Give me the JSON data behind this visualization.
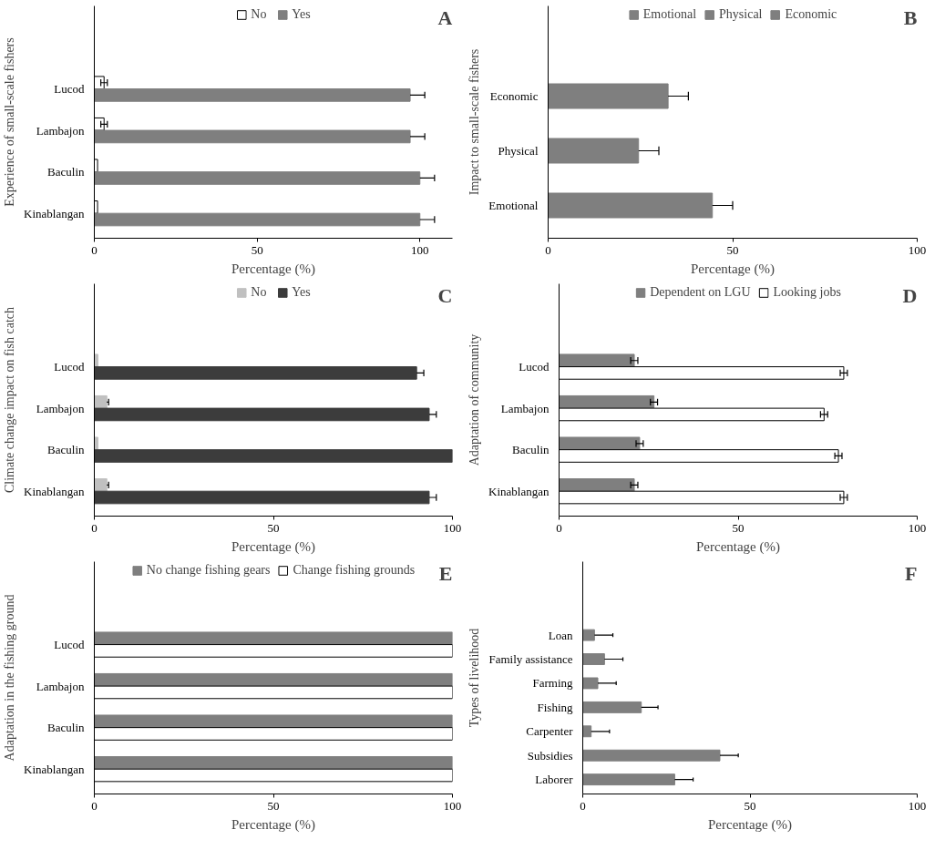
{
  "chart_data": [
    {
      "type": "bar",
      "orientation": "horizontal",
      "title": "A",
      "xlabel": "Percentage (%)",
      "ylabel": "Experience of small-scale fishers",
      "categories": [
        "Lucod",
        "Lambajon",
        "Baculin",
        "Kinablangan"
      ],
      "xlim": [
        0,
        110
      ],
      "xticks": [
        0,
        50,
        100
      ],
      "legend": "top",
      "grid": false,
      "series": [
        {
          "name": "No",
          "color": "#ffffff",
          "values": [
            3,
            3,
            1,
            1
          ],
          "errors": [
            1,
            1,
            null,
            null
          ]
        },
        {
          "name": "Yes",
          "color": "#7f7f7f",
          "values": [
            97,
            97,
            100,
            100
          ],
          "errors": [
            [
              97,
              101.5
            ],
            [
              97,
              101.5
            ],
            [
              100,
              104.5
            ],
            [
              100,
              104.5
            ]
          ]
        }
      ]
    },
    {
      "type": "bar",
      "orientation": "horizontal",
      "title": "B",
      "xlabel": "Percentage (%)",
      "ylabel": "Impact to small-scale fishers",
      "categories": [
        "Economic",
        "Physical",
        "Emotional"
      ],
      "xlim": [
        0,
        100
      ],
      "xticks": [
        0,
        50,
        100
      ],
      "legend": "top",
      "grid": false,
      "series": [
        {
          "name": "Emotional",
          "color": "#7f7f7f",
          "values": [
            null,
            null,
            44.5
          ],
          "errors": [
            null,
            null,
            [
              44.5,
              50
            ]
          ]
        },
        {
          "name": "Physical",
          "color": "#7f7f7f",
          "values": [
            null,
            24.5,
            null
          ],
          "errors": [
            null,
            [
              24.5,
              30
            ],
            null
          ]
        },
        {
          "name": "Economic",
          "color": "#7f7f7f",
          "values": [
            32.5,
            null,
            null
          ],
          "errors": [
            [
              32.5,
              38
            ],
            null,
            null
          ]
        }
      ]
    },
    {
      "type": "bar",
      "orientation": "horizontal",
      "title": "C",
      "xlabel": "Percentage (%)",
      "ylabel": "Climate change impact on fish catch",
      "categories": [
        "Lucod",
        "Lambajon",
        "Baculin",
        "Kinablangan"
      ],
      "xlim": [
        0,
        100
      ],
      "xticks": [
        0,
        50,
        100
      ],
      "legend": "top",
      "grid": false,
      "series": [
        {
          "name": "No",
          "color": "#c0c0c0",
          "values": [
            1,
            3.5,
            1,
            3.5
          ],
          "errors": [
            null,
            [
              3.5,
              4
            ],
            null,
            [
              3.5,
              4
            ]
          ]
        },
        {
          "name": "Yes",
          "color": "#3c3c3c",
          "values": [
            90,
            93.5,
            100,
            93.5
          ],
          "errors": [
            [
              90,
              92
            ],
            [
              93.5,
              95.5
            ],
            null,
            [
              93.5,
              95.5
            ]
          ]
        }
      ]
    },
    {
      "type": "bar",
      "orientation": "horizontal",
      "title": "D",
      "xlabel": "Percentage (%)",
      "ylabel": "Adaptation of community",
      "categories": [
        "Lucod",
        "Lambajon",
        "Baculin",
        "Kinablangan"
      ],
      "xlim": [
        0,
        100
      ],
      "xticks": [
        0,
        50,
        100
      ],
      "legend": "top",
      "grid": false,
      "series": [
        {
          "name": "Dependent on LGU",
          "color": "#7f7f7f",
          "values": [
            21,
            26.5,
            22.5,
            21
          ],
          "errors": [
            1,
            1,
            1,
            1
          ]
        },
        {
          "name": "Looking jobs",
          "color": "#ffffff",
          "values": [
            79.5,
            74,
            78,
            79.5
          ],
          "errors": [
            1,
            1,
            1,
            1
          ]
        }
      ]
    },
    {
      "type": "bar",
      "orientation": "horizontal",
      "title": "E",
      "xlabel": "Percentage (%)",
      "ylabel": "Adaptation in the fishing ground",
      "categories": [
        "Lucod",
        "Lambajon",
        "Baculin",
        "Kinablangan"
      ],
      "xlim": [
        0,
        100
      ],
      "xticks": [
        0,
        50,
        100
      ],
      "legend": "top",
      "grid": false,
      "series": [
        {
          "name": "No change fishing gears",
          "color": "#7f7f7f",
          "values": [
            100,
            100,
            100,
            100
          ]
        },
        {
          "name": "Change fishing grounds",
          "color": "#ffffff",
          "values": [
            100,
            100,
            100,
            100
          ]
        }
      ]
    },
    {
      "type": "bar",
      "orientation": "horizontal",
      "title": "F",
      "xlabel": "Percentage (%)",
      "ylabel": "Types of livelihood",
      "categories": [
        "Loan",
        "Family assistance",
        "Farming",
        "Fishing",
        "Carpenter",
        "Subsidies",
        "Laborer"
      ],
      "xlim": [
        0,
        100
      ],
      "xticks": [
        0,
        50,
        100
      ],
      "grid": false,
      "series": [
        {
          "color": "#7f7f7f",
          "values": [
            3.5,
            6.5,
            4.5,
            17.5,
            2.5,
            41,
            27.5
          ],
          "errors": [
            [
              3.5,
              9
            ],
            [
              6.5,
              12
            ],
            [
              4.5,
              10
            ],
            [
              17.5,
              22.5
            ],
            [
              2.5,
              8
            ],
            [
              41,
              46.5
            ],
            [
              27.5,
              33
            ]
          ]
        }
      ]
    }
  ]
}
